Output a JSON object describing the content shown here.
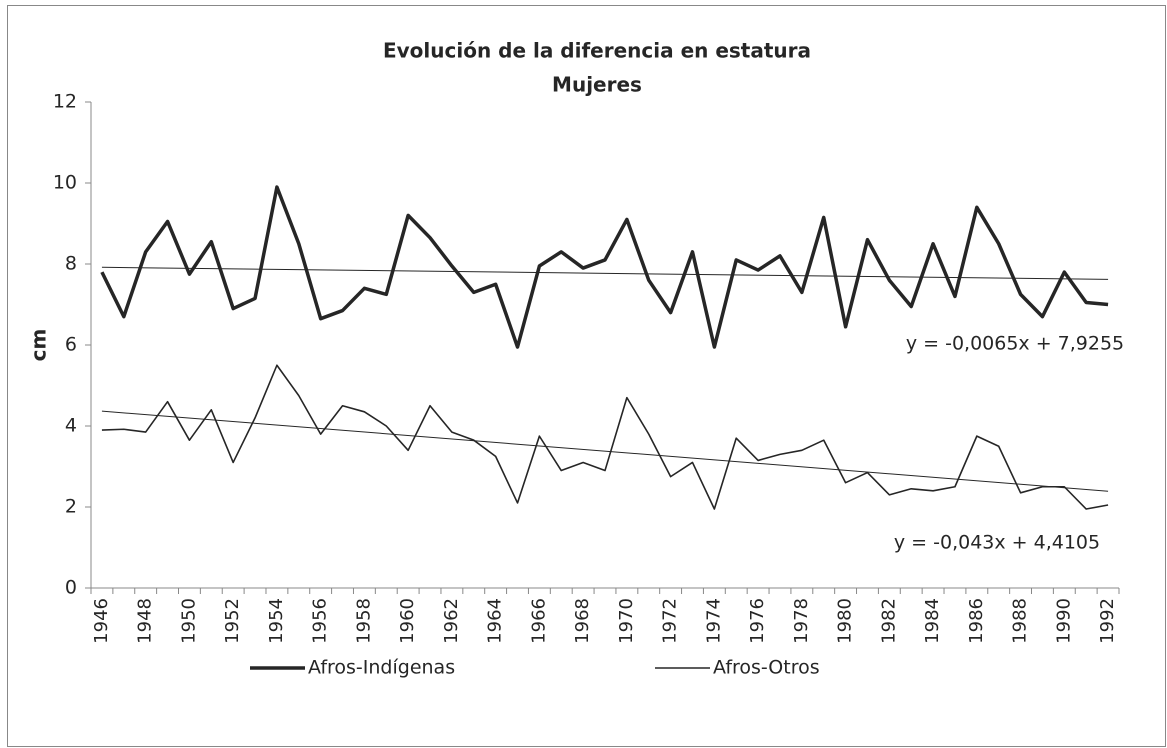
{
  "chart_data": {
    "type": "line",
    "title": "Evolución de la diferencia en estatura",
    "subtitle": "Mujeres",
    "y_label": "cm",
    "categories": [
      "1946",
      null,
      "1948",
      null,
      "1950",
      null,
      "1952",
      null,
      "1954",
      null,
      "1956",
      null,
      "1958",
      null,
      "1960",
      null,
      "1962",
      null,
      "1964",
      null,
      "1966",
      null,
      "1968",
      null,
      "1970",
      null,
      "1972",
      null,
      "1974",
      null,
      "1976",
      null,
      "1978",
      null,
      "1980",
      null,
      "1982",
      null,
      "1984",
      null,
      "1986",
      null,
      "1988",
      null,
      "1990",
      null,
      "1992"
    ],
    "series": [
      {
        "name": "Afros-Indígenas",
        "color": "#262626",
        "width": 3.5,
        "values": [
          7.8,
          6.7,
          8.3,
          9.05,
          7.75,
          8.55,
          6.9,
          7.15,
          9.9,
          8.5,
          6.65,
          6.85,
          7.4,
          7.25,
          9.2,
          8.65,
          7.95,
          7.3,
          7.5,
          5.95,
          7.95,
          8.3,
          7.9,
          8.1,
          9.1,
          7.6,
          6.8,
          8.3,
          5.95,
          8.1,
          7.85,
          8.2,
          7.3,
          9.15,
          6.45,
          8.6,
          7.6,
          6.95,
          8.5,
          7.2,
          9.4,
          8.5,
          7.25,
          6.7,
          7.8,
          7.05,
          7.0
        ],
        "trendline": {
          "slope": -0.0065,
          "intercept": 7.9255,
          "label": "y = -0,0065x + 7,9255"
        }
      },
      {
        "name": "Afros-Otros",
        "color": "#262626",
        "width": 1.6,
        "values": [
          3.9,
          3.92,
          3.85,
          4.6,
          3.65,
          4.4,
          3.1,
          4.2,
          5.5,
          4.75,
          3.8,
          4.5,
          4.35,
          4.0,
          3.4,
          4.5,
          3.85,
          3.65,
          3.25,
          2.1,
          3.75,
          2.9,
          3.1,
          2.9,
          4.7,
          3.8,
          2.75,
          3.1,
          1.95,
          3.7,
          3.15,
          3.3,
          3.4,
          3.65,
          2.6,
          2.85,
          2.3,
          2.45,
          2.4,
          2.5,
          3.75,
          3.5,
          2.35,
          2.5,
          2.5,
          1.95,
          2.05
        ],
        "trendline": {
          "slope": -0.043,
          "intercept": 4.4105,
          "label": "y = -0,043x + 4,4105"
        }
      }
    ],
    "ylim": [
      0,
      12
    ],
    "yticks": [
      0,
      2,
      4,
      6,
      8,
      10,
      12
    ],
    "grid": false,
    "legend": "bottom"
  }
}
